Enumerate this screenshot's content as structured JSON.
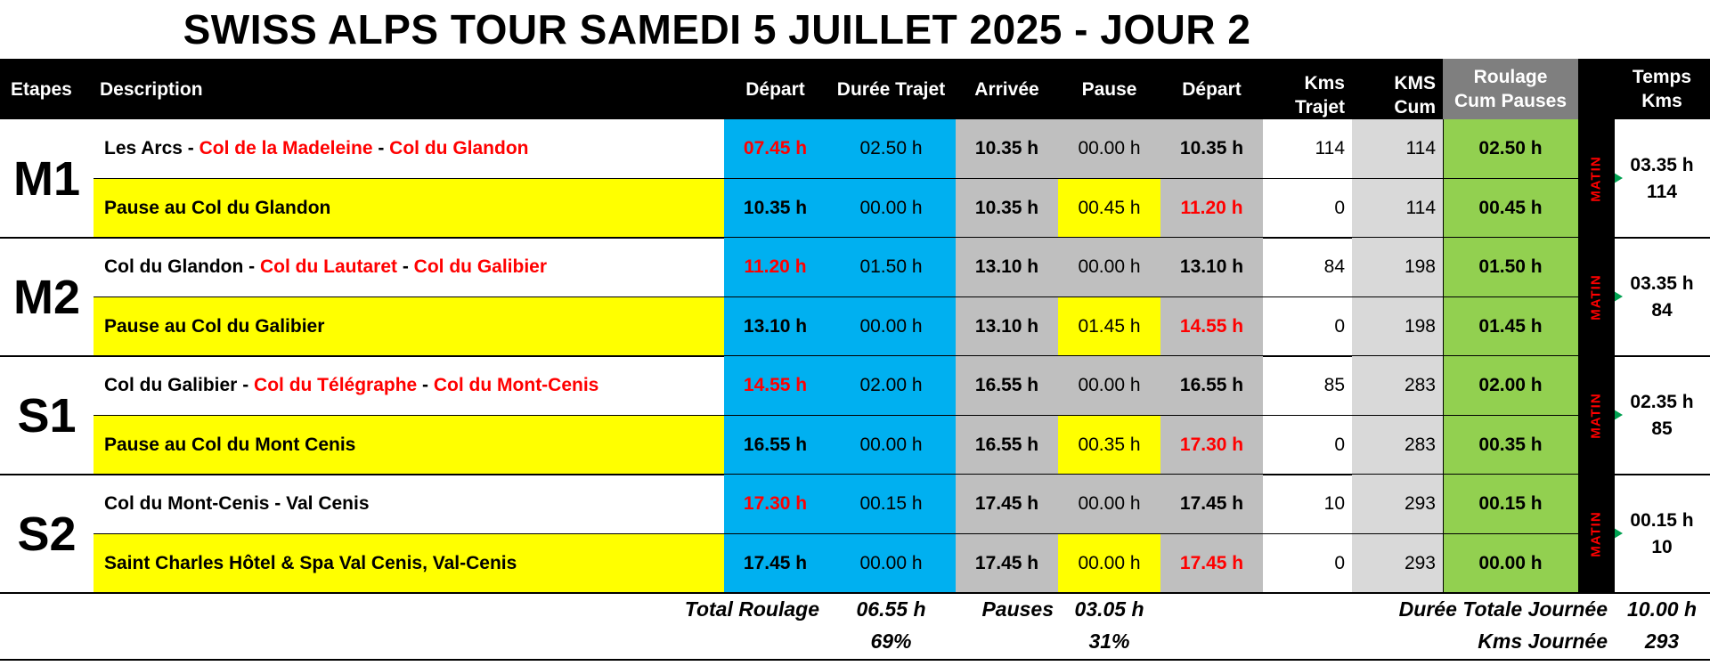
{
  "title": "SWISS ALPS TOUR SAMEDI 5 JUILLET 2025 - JOUR 2",
  "colors": {
    "blue": "#00b0f0",
    "gray": "#bfbfbf",
    "light_gray": "#d9d9d9",
    "green": "#92d050",
    "yellow": "#ffff00",
    "red": "#ff0000",
    "header": "#000000"
  },
  "headers": {
    "etapes": "Etapes",
    "description": "Description",
    "depart": "Départ",
    "duree": "Durée Trajet",
    "arrivee": "Arrivée",
    "pause": "Pause",
    "depart2": "Départ",
    "kms_trajet_1": "Kms",
    "kms_trajet_2": "Trajet",
    "kms_cum_1": "KMS",
    "kms_cum_2": "Cum",
    "roulage_1": "Roulage",
    "roulage_2": "Cum Pauses",
    "temps_1": "Temps",
    "temps_2": "Kms"
  },
  "stages": [
    {
      "code": "M1",
      "label": "MATIN",
      "temps": "03.35 h",
      "kms": "114",
      "rows": [
        {
          "desc": [
            {
              "t": "Les Arcs",
              "red": false
            },
            {
              "t": " - ",
              "red": false
            },
            {
              "t": "Col de la Madeleine",
              "red": true
            },
            {
              "t": " - ",
              "red": false
            },
            {
              "t": "Col du Glandon",
              "red": true
            }
          ],
          "depart": "07.45 h",
          "duree": "02.50 h",
          "arrivee": "10.35 h",
          "pause": "00.00 h",
          "depart2": "10.35 h",
          "kms": "114",
          "kmscum": "114",
          "roulage": "02.50 h"
        },
        {
          "desc": [
            {
              "t": "Pause au Col du Glandon",
              "red": false
            }
          ],
          "depart": "10.35 h",
          "duree": "00.00 h",
          "arrivee": "10.35 h",
          "pause": "00.45 h",
          "depart2": "11.20 h",
          "kms": "0",
          "kmscum": "114",
          "roulage": "00.45 h"
        }
      ]
    },
    {
      "code": "M2",
      "label": "MATIN",
      "temps": "03.35 h",
      "kms": "84",
      "rows": [
        {
          "desc": [
            {
              "t": "Col du Glandon",
              "red": false
            },
            {
              "t": " - ",
              "red": false
            },
            {
              "t": "Col du Lautaret",
              "red": true
            },
            {
              "t": " - ",
              "red": false
            },
            {
              "t": "Col du Galibier",
              "red": true
            }
          ],
          "depart": "11.20 h",
          "duree": "01.50 h",
          "arrivee": "13.10 h",
          "pause": "00.00 h",
          "depart2": "13.10 h",
          "kms": "84",
          "kmscum": "198",
          "roulage": "01.50 h"
        },
        {
          "desc": [
            {
              "t": "Pause au Col du Galibier",
              "red": false
            }
          ],
          "depart": "13.10 h",
          "duree": "00.00 h",
          "arrivee": "13.10 h",
          "pause": "01.45 h",
          "depart2": "14.55 h",
          "kms": "0",
          "kmscum": "198",
          "roulage": "01.45 h"
        }
      ]
    },
    {
      "code": "S1",
      "label": "MATIN",
      "temps": "02.35 h",
      "kms": "85",
      "rows": [
        {
          "desc": [
            {
              "t": "Col du Galibier",
              "red": false
            },
            {
              "t": " - ",
              "red": false
            },
            {
              "t": "Col du Télégraphe",
              "red": true
            },
            {
              "t": " - ",
              "red": false
            },
            {
              "t": "Col du Mont-Cenis",
              "red": true
            }
          ],
          "depart": "14.55 h",
          "duree": "02.00 h",
          "arrivee": "16.55 h",
          "pause": "00.00 h",
          "depart2": "16.55 h",
          "kms": "85",
          "kmscum": "283",
          "roulage": "02.00 h"
        },
        {
          "desc": [
            {
              "t": "Pause au Col du Mont Cenis",
              "red": false
            }
          ],
          "depart": "16.55 h",
          "duree": "00.00 h",
          "arrivee": "16.55 h",
          "pause": "00.35 h",
          "depart2": "17.30 h",
          "kms": "0",
          "kmscum": "283",
          "roulage": "00.35 h"
        }
      ]
    },
    {
      "code": "S2",
      "label": "MATIN",
      "temps": "00.15 h",
      "kms": "10",
      "rows": [
        {
          "desc": [
            {
              "t": "Col du Mont-Cenis - Val Cenis",
              "red": false
            }
          ],
          "depart": "17.30 h",
          "duree": "00.15 h",
          "arrivee": "17.45 h",
          "pause": "00.00 h",
          "depart2": "17.45 h",
          "kms": "10",
          "kmscum": "293",
          "roulage": "00.15 h"
        },
        {
          "desc": [
            {
              "t": "Saint Charles Hôtel & Spa Val Cenis, Val-Cenis",
              "red": false
            }
          ],
          "depart": "17.45 h",
          "duree": "00.00 h",
          "arrivee": "17.45 h",
          "pause": "00.00 h",
          "depart2": "17.45 h",
          "kms": "0",
          "kmscum": "293",
          "roulage": "00.00 h"
        }
      ]
    }
  ],
  "totals": {
    "total_roulage_label": "Total Roulage",
    "total_roulage": "06.55 h",
    "total_roulage_pct": "69%",
    "pauses_label": "Pauses",
    "pauses": "03.05 h",
    "pauses_pct": "31%",
    "duree_totale_label": "Durée Totale Journée",
    "duree_totale": "10.00 h",
    "kms_journee_label": "Kms Journée",
    "kms_journee": "293"
  }
}
